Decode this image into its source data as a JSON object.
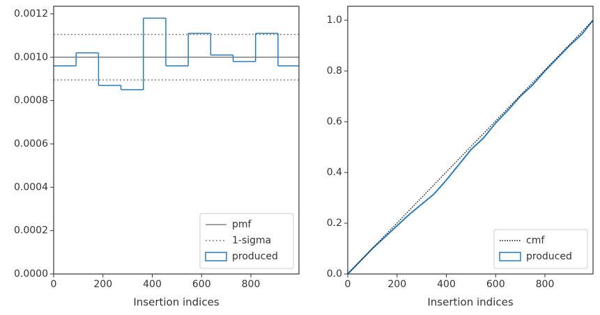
{
  "chart_data": [
    {
      "type": "step_histogram",
      "xlabel": "Insertion indices",
      "bins": [
        0,
        91,
        182,
        273,
        364,
        455,
        546,
        637,
        728,
        819,
        910,
        1000
      ],
      "values": [
        0.00096,
        0.00102,
        0.00087,
        0.00085,
        0.00118,
        0.00096,
        0.00111,
        0.00101,
        0.00098,
        0.00111,
        0.00096
      ],
      "name": "produced",
      "color": "#2b7bba",
      "pmf": {
        "name": "pmf",
        "value": 0.001,
        "color": "#808080"
      },
      "sigma": {
        "name": "1-sigma",
        "values": [
          0.000895,
          0.001105
        ],
        "color": "#808080"
      },
      "xlim": [
        0,
        995
      ],
      "ylim": [
        0,
        0.001235
      ],
      "xticks": [
        0,
        200,
        400,
        600,
        800
      ],
      "yticks": [
        {
          "value": 0,
          "label": "0.0000"
        },
        {
          "value": 0.0002,
          "label": "0.0002"
        },
        {
          "value": 0.0004,
          "label": "0.0004"
        },
        {
          "value": 0.0006,
          "label": "0.0006"
        },
        {
          "value": 0.0008,
          "label": "0.0008"
        },
        {
          "value": 0.001,
          "label": "0.0010"
        },
        {
          "value": 0.0012,
          "label": "0.0012"
        }
      ],
      "legend": "lower right"
    },
    {
      "type": "cumulative",
      "xlabel": "Insertion indices",
      "cmf": {
        "name": "cmf",
        "x": [
          0,
          1000
        ],
        "values": [
          0,
          1
        ],
        "color": "#000000"
      },
      "produced": {
        "name": "produced",
        "color": "#2b7bba",
        "x": [
          0,
          50,
          100,
          150,
          200,
          250,
          300,
          350,
          400,
          450,
          500,
          550,
          600,
          650,
          700,
          750,
          800,
          850,
          900,
          950,
          1000
        ],
        "values": [
          0,
          0.05,
          0.1,
          0.145,
          0.19,
          0.235,
          0.275,
          0.315,
          0.37,
          0.43,
          0.49,
          0.535,
          0.595,
          0.645,
          0.7,
          0.745,
          0.8,
          0.85,
          0.9,
          0.945,
          1.0
        ]
      },
      "xlim": [
        0,
        995
      ],
      "ylim": [
        0,
        1.055
      ],
      "xticks": [
        0,
        200,
        400,
        600,
        800
      ],
      "yticks": [
        {
          "value": 0,
          "label": "0.0"
        },
        0.2,
        0.4,
        0.6,
        0.8,
        {
          "value": 1,
          "label": "1.0"
        }
      ],
      "legend": "lower right"
    }
  ]
}
